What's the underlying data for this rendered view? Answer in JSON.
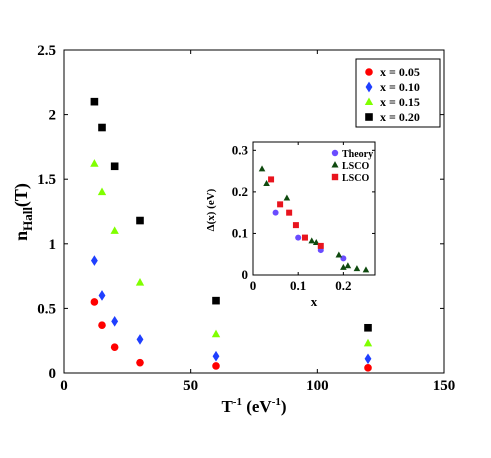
{
  "chart_data": [
    {
      "type": "scatter",
      "xlabel": "T",
      "xlabel_sup": "-1",
      "xlabel_unit": " (eV",
      "xlabel_unit_sup": "-1",
      "xlabel_close": ")",
      "ylabel": "n",
      "ylabel_sub": "Hall",
      "ylabel_tail": "(T)",
      "xlim": [
        0,
        150
      ],
      "ylim": [
        0,
        2.5
      ],
      "xticks": [
        "0",
        "50",
        "100",
        "150"
      ],
      "yticks": [
        "0",
        "0.5",
        "1",
        "1.5",
        "2",
        "2.5"
      ],
      "xtick_values": [
        0,
        50,
        100,
        150
      ],
      "ytick_values": [
        0,
        0.5,
        1,
        1.5,
        2,
        2.5
      ],
      "legend_position": "top-right",
      "series": [
        {
          "name": "x = 0.05",
          "marker": "circle",
          "color": "#ff0000",
          "x": [
            12,
            15,
            20,
            30,
            60,
            120
          ],
          "y": [
            0.55,
            0.37,
            0.2,
            0.08,
            0.055,
            0.04
          ]
        },
        {
          "name": "x = 0.10",
          "marker": "diamond",
          "color": "#1f3fff",
          "x": [
            12,
            15,
            20,
            30,
            60,
            120
          ],
          "y": [
            0.87,
            0.6,
            0.4,
            0.26,
            0.13,
            0.11
          ]
        },
        {
          "name": "x = 0.15",
          "marker": "triangle",
          "color": "#80ff00",
          "x": [
            12,
            15,
            20,
            30,
            60,
            120
          ],
          "y": [
            1.62,
            1.4,
            1.1,
            0.7,
            0.3,
            0.23
          ]
        },
        {
          "name": "x = 0.20",
          "marker": "square",
          "color": "#000000",
          "x": [
            12,
            15,
            20,
            30,
            60,
            120
          ],
          "y": [
            2.1,
            1.9,
            1.6,
            1.18,
            0.56,
            0.35
          ]
        }
      ]
    },
    {
      "type": "scatter",
      "xlabel": "x",
      "ylabel": "Δ(x) (eV)",
      "xlim": [
        0,
        0.27
      ],
      "ylim": [
        0,
        0.32
      ],
      "xticks": [
        "0",
        "0.1",
        "0.2"
      ],
      "yticks": [
        "0",
        "0.1",
        "0.2",
        "0.3"
      ],
      "xtick_values": [
        0,
        0.1,
        0.2
      ],
      "ytick_values": [
        0,
        0.1,
        0.2,
        0.3
      ],
      "legend_position": "top-right",
      "series": [
        {
          "name": "Theory",
          "marker": "circle",
          "color": "#6a4cff",
          "x": [
            0.05,
            0.1,
            0.15,
            0.2
          ],
          "y": [
            0.15,
            0.09,
            0.06,
            0.04
          ]
        },
        {
          "name": "LSCO",
          "marker": "triangle",
          "color": "#0f4a0f",
          "x": [
            0.02,
            0.03,
            0.075,
            0.13,
            0.14,
            0.19,
            0.2,
            0.21,
            0.23,
            0.25
          ],
          "y": [
            0.255,
            0.22,
            0.185,
            0.082,
            0.078,
            0.048,
            0.018,
            0.022,
            0.015,
            0.012
          ]
        },
        {
          "name": "LSCO",
          "marker": "square",
          "color": "#e8141e",
          "x": [
            0.04,
            0.06,
            0.08,
            0.095,
            0.115,
            0.15
          ],
          "y": [
            0.23,
            0.17,
            0.15,
            0.12,
            0.09,
            0.07
          ]
        }
      ]
    }
  ]
}
